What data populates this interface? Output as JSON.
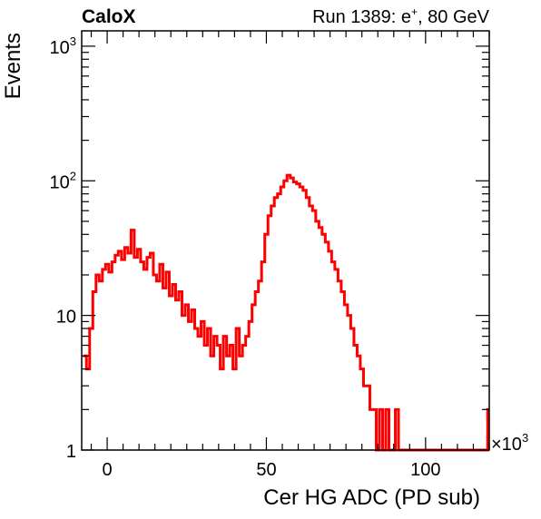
{
  "chart_data": {
    "type": "line",
    "left_label": "CaloX",
    "run_label": "Run 1389: e",
    "run_label_sup": "+",
    "run_label_tail": ", 80 GeV",
    "xlabel": "Cer HG ADC (PD sub)",
    "ylabel": "Events",
    "x_multiplier_label": "×10",
    "x_multiplier_exp": "3",
    "xlim": [
      -8,
      120
    ],
    "ylim": [
      1,
      1300
    ],
    "y_scale": "log",
    "x_ticks": [
      {
        "value": 0,
        "label": "0"
      },
      {
        "value": 50,
        "label": "50"
      },
      {
        "value": 100,
        "label": "100"
      }
    ],
    "y_ticks": [
      {
        "value": 1,
        "label": "1",
        "sup": ""
      },
      {
        "value": 10,
        "label": "10",
        "sup": ""
      },
      {
        "value": 100,
        "label": "10",
        "sup": "2"
      },
      {
        "value": 1000,
        "label": "10",
        "sup": "3"
      }
    ],
    "line_color": "#ff0000",
    "series": [
      {
        "x": [
          -7,
          -6,
          -5,
          -4,
          -3,
          -2,
          -1,
          0,
          1,
          2,
          3,
          4,
          5,
          6,
          7,
          8,
          9,
          10,
          11,
          12,
          13,
          14,
          15,
          16,
          17,
          18,
          19,
          20,
          21,
          22,
          23,
          24,
          25,
          26,
          27,
          28,
          29,
          30,
          31,
          32,
          33,
          34,
          35,
          36,
          37,
          38,
          39,
          40,
          41,
          42,
          43,
          44,
          45,
          46,
          47,
          48,
          49,
          50,
          51,
          52,
          53,
          54,
          55,
          56,
          57,
          58,
          59,
          60,
          61,
          62,
          63,
          64,
          65,
          66,
          67,
          68,
          69,
          70,
          71,
          72,
          73,
          74,
          75,
          76,
          77,
          78,
          79,
          80,
          81,
          82,
          83,
          84,
          85,
          86,
          87,
          88,
          89,
          90,
          91,
          92,
          93,
          94,
          95,
          96,
          97,
          98,
          99,
          100,
          101,
          102,
          103,
          104,
          105,
          106,
          107,
          108,
          109,
          110,
          111,
          112,
          113,
          114,
          115,
          116,
          117,
          118,
          119,
          120
        ],
        "values": [
          5,
          4,
          8,
          15,
          20,
          18,
          22,
          24,
          21,
          25,
          28,
          30,
          26,
          32,
          29,
          43,
          27,
          31,
          25,
          22,
          27,
          29,
          20,
          18,
          24,
          16,
          21,
          14,
          17,
          13,
          15,
          10,
          12,
          9,
          11,
          8,
          7,
          9,
          6,
          8,
          5,
          7,
          6,
          4,
          7,
          5,
          6,
          4,
          8,
          5,
          6,
          7,
          9,
          12,
          15,
          18,
          25,
          40,
          55,
          65,
          75,
          80,
          90,
          100,
          110,
          105,
          98,
          95,
          90,
          85,
          75,
          65,
          60,
          50,
          45,
          40,
          35,
          30,
          25,
          22,
          18,
          15,
          12,
          10,
          8,
          6,
          5,
          4,
          3,
          3,
          2,
          2,
          1,
          2,
          1,
          2,
          1,
          1,
          2,
          1,
          1,
          1,
          1,
          1,
          1,
          1,
          1,
          1,
          1,
          1,
          1,
          1,
          1,
          1,
          1,
          1,
          1,
          1,
          1,
          1,
          1,
          1,
          1,
          1,
          1,
          1,
          1,
          2
        ]
      }
    ]
  }
}
